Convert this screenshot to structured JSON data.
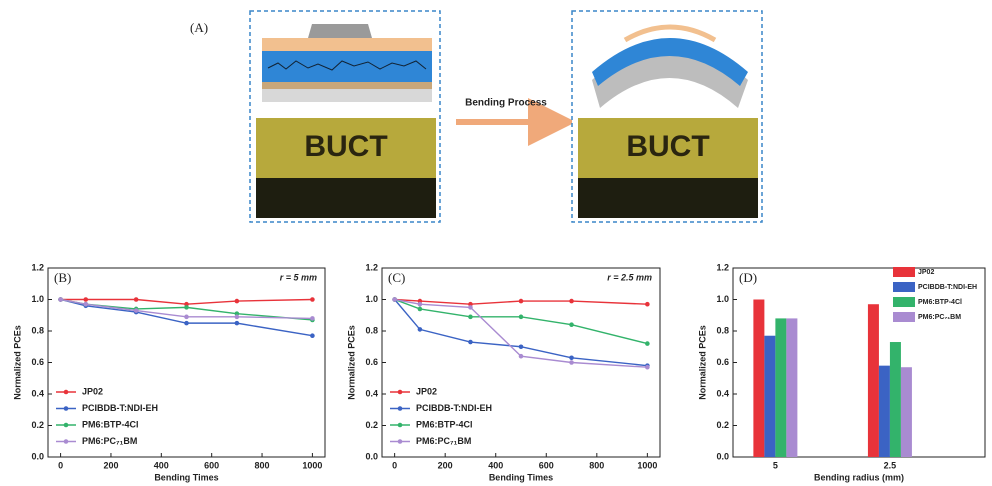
{
  "figure_a": {
    "label": "(A)",
    "left_text": "BUCT",
    "right_text": "BUCT",
    "arrow_label": "Bending Process"
  },
  "chart_data": [
    {
      "type": "line",
      "panel_label": "(B)",
      "annotation": "r = 5 mm",
      "xlabel": "Bending Times",
      "ylabel": "Normalized PCEs",
      "x": [
        0,
        100,
        300,
        500,
        700,
        1000
      ],
      "xlim": [
        -50,
        1050
      ],
      "xticks": [
        0,
        200,
        400,
        600,
        800,
        1000
      ],
      "ylim": [
        0,
        1.2
      ],
      "yticks": [
        {
          "value": 0,
          "label": "0.0"
        },
        0.2,
        0.4,
        0.6,
        0.8,
        {
          "value": 1,
          "label": "1.0"
        },
        1.2
      ],
      "series": [
        {
          "name": "JP02",
          "color": "#e8333a",
          "values": [
            1.0,
            1.0,
            1.0,
            0.97,
            0.99,
            1.0
          ]
        },
        {
          "name": "PCIBDB-T:NDI-EH",
          "color": "#3b63c4",
          "values": [
            1.0,
            0.96,
            0.92,
            0.85,
            0.85,
            0.77
          ]
        },
        {
          "name": "PM6:BTP-4Cl",
          "color": "#33b36b",
          "values": [
            1.0,
            0.97,
            0.94,
            0.95,
            0.91,
            0.87
          ]
        },
        {
          "name": "PM6:PC₇₁BM",
          "color": "#a98bd1",
          "values": [
            1.0,
            0.97,
            0.93,
            0.89,
            0.89,
            0.88
          ]
        }
      ]
    },
    {
      "type": "line",
      "panel_label": "(C)",
      "annotation": "r = 2.5 mm",
      "xlabel": "Bending Times",
      "ylabel": "Normalized PCEs",
      "x": [
        0,
        100,
        300,
        500,
        700,
        1000
      ],
      "xlim": [
        -50,
        1050
      ],
      "xticks": [
        0,
        200,
        400,
        600,
        800,
        1000
      ],
      "ylim": [
        0,
        1.2
      ],
      "yticks": [
        {
          "value": 0,
          "label": "0.0"
        },
        0.2,
        0.4,
        0.6,
        0.8,
        {
          "value": 1,
          "label": "1.0"
        },
        1.2
      ],
      "series": [
        {
          "name": "JP02",
          "color": "#e8333a",
          "values": [
            1.0,
            0.99,
            0.97,
            0.99,
            0.99,
            0.97
          ]
        },
        {
          "name": "PCIBDB-T:NDI-EH",
          "color": "#3b63c4",
          "values": [
            1.0,
            0.81,
            0.73,
            0.7,
            0.63,
            0.58
          ]
        },
        {
          "name": "PM6:BTP-4Cl",
          "color": "#33b36b",
          "values": [
            1.0,
            0.94,
            0.89,
            0.89,
            0.84,
            0.72
          ]
        },
        {
          "name": "PM6:PC₇₁BM",
          "color": "#a98bd1",
          "values": [
            1.0,
            0.97,
            0.95,
            0.64,
            0.6,
            0.57
          ]
        }
      ]
    },
    {
      "type": "bar",
      "panel_label": "(D)",
      "xlabel": "Bending radius (mm)",
      "ylabel": "Normalized PCEs",
      "categories": [
        "5",
        "2.5"
      ],
      "ylim": [
        0,
        1.2
      ],
      "yticks": [
        {
          "value": 0,
          "label": "0.0"
        },
        0.2,
        0.4,
        0.6,
        0.8,
        {
          "value": 1,
          "label": "1.0"
        },
        1.2
      ],
      "series": [
        {
          "name": "JP02",
          "color": "#e8333a",
          "values": [
            1.0,
            0.97
          ]
        },
        {
          "name": "PCIBDB-T:NDI-EH",
          "color": "#3b63c4",
          "values": [
            0.77,
            0.58
          ]
        },
        {
          "name": "PM6:BTP-4Cl",
          "color": "#33b36b",
          "values": [
            0.88,
            0.73
          ]
        },
        {
          "name": "PM6:PC₇₁BM",
          "color": "#a98bd1",
          "values": [
            0.88,
            0.57
          ]
        }
      ]
    }
  ]
}
